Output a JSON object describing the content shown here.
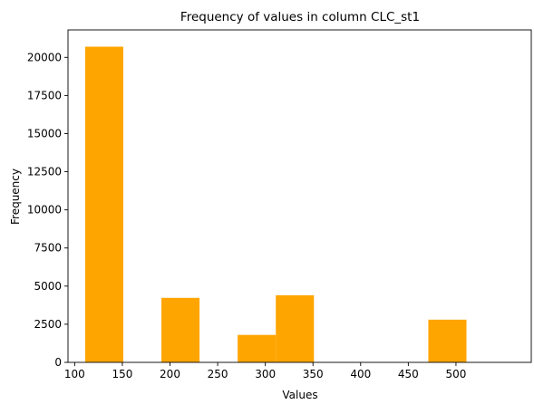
{
  "chart_data": {
    "type": "bar",
    "title": "Frequency of values in column CLC_st1",
    "xlabel": "Values",
    "ylabel": "Frequency",
    "bar_color": "#ffa500",
    "xlim": [
      93,
      579
    ],
    "ylim": [
      0,
      21800
    ],
    "xticks": [
      100,
      150,
      200,
      250,
      300,
      350,
      400,
      450,
      500
    ],
    "yticks": [
      0,
      2500,
      5000,
      7500,
      10000,
      12500,
      15000,
      17500,
      20000
    ],
    "bins": [
      {
        "start": 111,
        "end": 151,
        "value": 20700
      },
      {
        "start": 151,
        "end": 191,
        "value": 0
      },
      {
        "start": 191,
        "end": 231,
        "value": 4230
      },
      {
        "start": 231,
        "end": 271,
        "value": 0
      },
      {
        "start": 271,
        "end": 311,
        "value": 1800
      },
      {
        "start": 311,
        "end": 351,
        "value": 4400
      },
      {
        "start": 351,
        "end": 391,
        "value": 0
      },
      {
        "start": 391,
        "end": 431,
        "value": 0
      },
      {
        "start": 431,
        "end": 471,
        "value": 0
      },
      {
        "start": 471,
        "end": 511,
        "value": 2800
      }
    ],
    "grid": false,
    "legend": "none"
  }
}
